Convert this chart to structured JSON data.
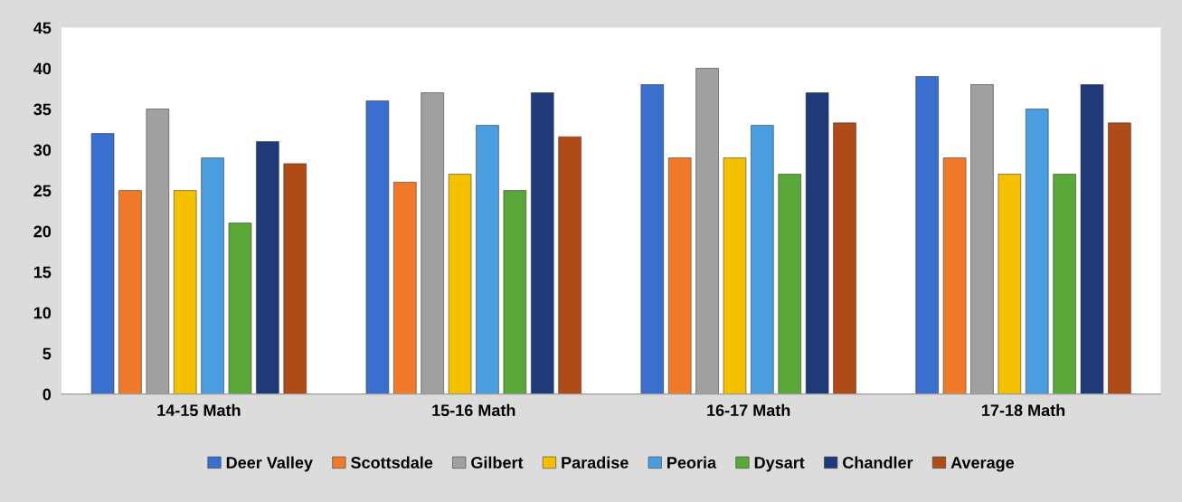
{
  "chart_data": {
    "type": "bar",
    "categories": [
      "14-15 Math",
      "15-16 Math",
      "16-17 Math",
      "17-18 Math"
    ],
    "series": [
      {
        "name": "Deer Valley",
        "color": "#3a6fd0",
        "values": [
          32,
          36,
          38,
          39
        ]
      },
      {
        "name": "Scottsdale",
        "color": "#f07a2a",
        "values": [
          25,
          26,
          29,
          29
        ]
      },
      {
        "name": "Gilbert",
        "color": "#a0a0a0",
        "values": [
          35,
          37,
          40,
          38
        ]
      },
      {
        "name": "Paradise",
        "color": "#f5c000",
        "values": [
          25,
          27,
          29,
          27
        ]
      },
      {
        "name": "Peoria",
        "color": "#4a9de0",
        "values": [
          29,
          33,
          33,
          35
        ]
      },
      {
        "name": "Dysart",
        "color": "#5aa83a",
        "values": [
          21,
          25,
          27,
          27
        ]
      },
      {
        "name": "Chandler",
        "color": "#1f3a78",
        "values": [
          31,
          37,
          37,
          38
        ]
      },
      {
        "name": "Average",
        "color": "#b04a18",
        "values": [
          28.3,
          31.6,
          33.3,
          33.3
        ]
      }
    ],
    "ylim": [
      0,
      45
    ],
    "yticks": [
      0,
      5,
      10,
      15,
      20,
      25,
      30,
      35,
      40,
      45
    ],
    "grid": false,
    "legend": "bottom"
  }
}
